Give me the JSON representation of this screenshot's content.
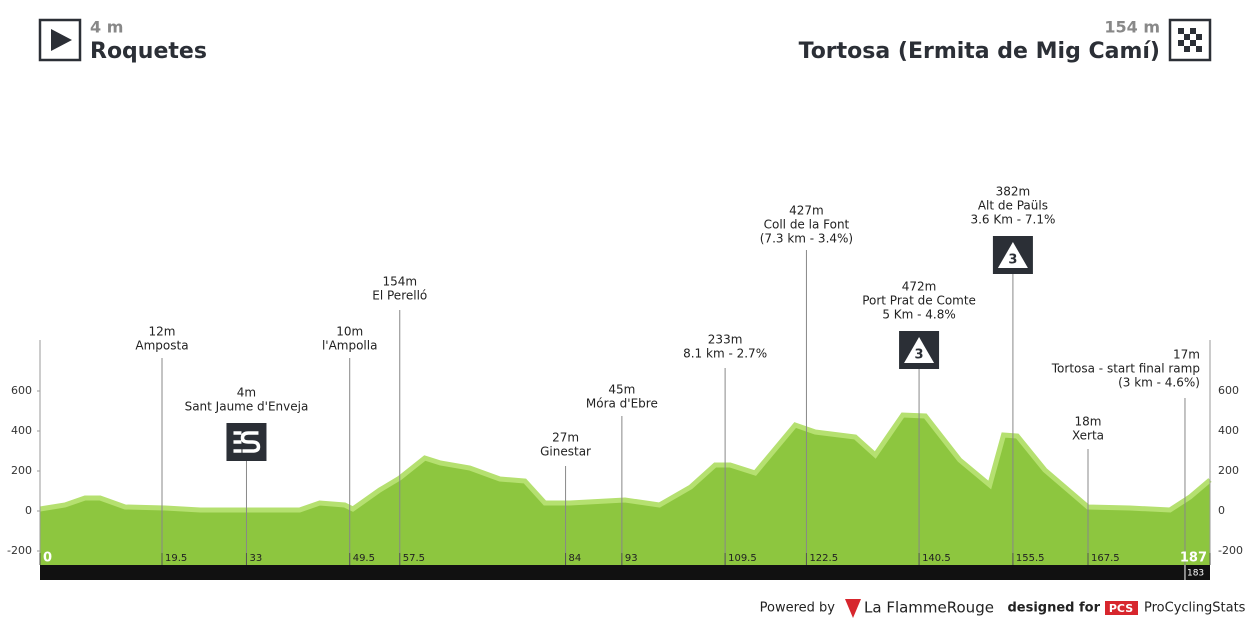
{
  "header": {
    "start_altitude": "4 m",
    "start": "Roquetes",
    "finish_altitude": "154 m",
    "finish": "Tortosa (Ermita de Mig Camí)"
  },
  "chart_data": {
    "type": "area",
    "color": "#8dc63f",
    "edge_color": "#b5e070",
    "x": [
      0,
      4,
      7.2,
      9.6,
      13.6,
      20,
      25.6,
      41.5,
      44.7,
      48.7,
      50,
      54.3,
      57.5,
      61.5,
      64,
      68.7,
      73.5,
      77.5,
      80.7,
      84.7,
      93.5,
      99,
      104,
      107.9,
      110.3,
      114.3,
      120.7,
      123.9,
      130.3,
      133.5,
      137.9,
      141.5,
      147,
      151.8,
      154,
      156.2,
      160.6,
      167.5,
      174.2,
      180.6,
      183.8,
      187
    ],
    "values": [
      10,
      30,
      65,
      65,
      20,
      15,
      5,
      5,
      40,
      30,
      10,
      105,
      165,
      265,
      240,
      215,
      160,
      150,
      40,
      40,
      55,
      30,
      120,
      230,
      230,
      190,
      430,
      395,
      370,
      280,
      480,
      475,
      255,
      130,
      380,
      375,
      205,
      20,
      15,
      5,
      70,
      155
    ],
    "xlim": [
      0,
      187
    ],
    "ylim": [
      -270,
      855
    ],
    "yticks": [
      -200,
      0,
      200,
      400,
      600
    ],
    "xticks": [
      0,
      19.5,
      33,
      49.5,
      57.5,
      84,
      93,
      109.5,
      122.5,
      140.5,
      155.5,
      167.5,
      187
    ],
    "extra_xtick": 183,
    "annotations": [
      {
        "km": 19.5,
        "lines": [
          "12m",
          "Amposta"
        ]
      },
      {
        "km": 33,
        "lines": [
          "4m",
          "Sant Jaume d'Enveja"
        ],
        "icon": "sprint"
      },
      {
        "km": 49.5,
        "lines": [
          "10m",
          "l'Ampolla"
        ]
      },
      {
        "km": 57.5,
        "lines": [
          "154m",
          "El Perelló"
        ]
      },
      {
        "km": 84,
        "lines": [
          "27m",
          "Ginestar"
        ]
      },
      {
        "km": 93,
        "lines": [
          "45m",
          "Móra d'Ebre"
        ]
      },
      {
        "km": 109.5,
        "lines": [
          "233m",
          "8.1 km - 2.7%"
        ]
      },
      {
        "km": 122.5,
        "lines": [
          "427m",
          "Coll de la Font",
          "(7.3 km - 3.4%)"
        ]
      },
      {
        "km": 140.5,
        "lines": [
          "472m",
          "Port Prat de Comte",
          "5 Km - 4.8%"
        ],
        "icon": "climb",
        "icon_label": "3"
      },
      {
        "km": 155.5,
        "lines": [
          "382m",
          "Alt de Paüls",
          "3.6 Km - 7.1%"
        ],
        "icon": "climb",
        "icon_label": "3"
      },
      {
        "km": 167.5,
        "lines": [
          "18m",
          "Xerta"
        ]
      },
      {
        "km": 183,
        "lines": [
          "17m",
          "Tortosa - start final ramp",
          "(3 km - 4.6%)"
        ]
      }
    ]
  },
  "footer": {
    "powered": "Powered by",
    "brand": "La FlammeRouge",
    "designed": "designed for",
    "pcs": "PCS",
    "pcs_name": "ProCyclingStats"
  }
}
